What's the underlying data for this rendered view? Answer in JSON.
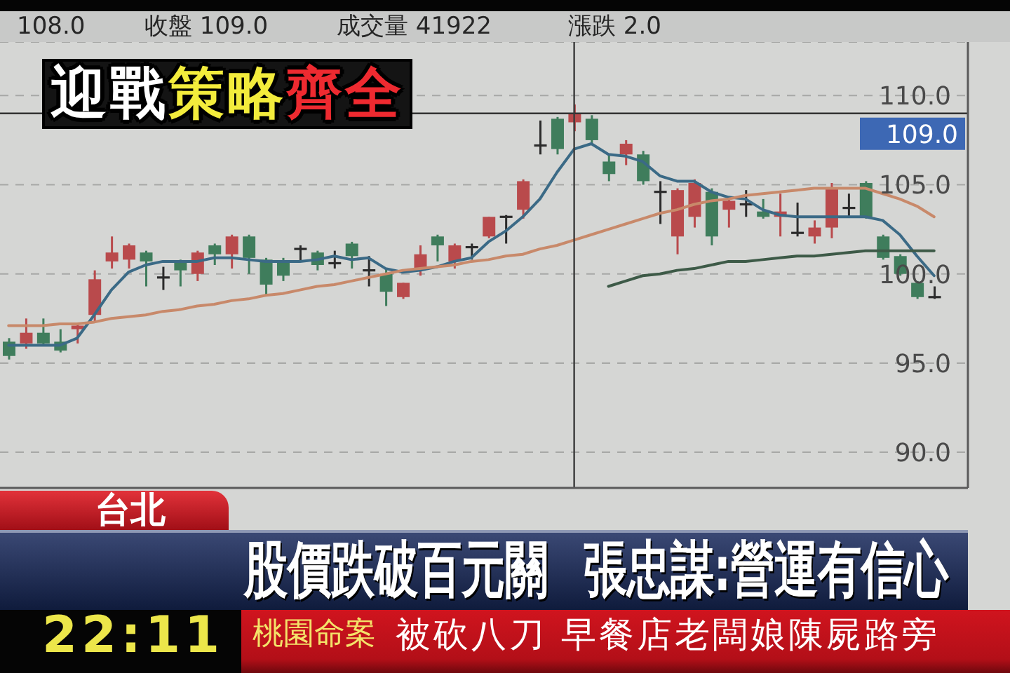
{
  "chart_data": {
    "type": "candlestick",
    "title": "迎戰策略齊全",
    "subtitle": "股價跌破百元關 張忠謀:營運有信心",
    "annotations": [
      "108.0",
      "收盤 109.0",
      "成交量 41922",
      "漲跌 2.0",
      "台北",
      "22:11",
      "桃園命案",
      "被砍八刀",
      "早餐店老闆娘陳屍路旁"
    ],
    "categories": [
      null,
      null,
      null,
      null,
      null,
      null,
      null,
      null,
      null,
      null,
      null,
      null,
      null,
      null,
      null,
      null,
      null,
      null,
      null,
      null,
      null,
      null,
      null,
      null,
      null,
      null,
      null,
      null,
      null,
      null,
      null,
      null,
      null,
      null,
      null,
      null,
      null,
      null,
      null,
      null,
      null,
      null,
      null,
      null,
      null,
      null,
      null,
      null,
      null,
      null,
      null,
      null,
      null,
      null,
      null
    ],
    "ohlc": [
      [
        96.2,
        96.4,
        95.2,
        95.4
      ],
      [
        96.1,
        97.5,
        95.8,
        96.7
      ],
      [
        96.7,
        97.5,
        96.0,
        96.1
      ],
      [
        96.2,
        96.9,
        95.6,
        95.7
      ],
      [
        96.9,
        97.2,
        96.1,
        97.1
      ],
      [
        97.7,
        100.2,
        97.3,
        99.7
      ],
      [
        100.7,
        102.1,
        100.3,
        101.2
      ],
      [
        100.8,
        101.7,
        100.3,
        101.6
      ],
      [
        101.2,
        101.3,
        99.3,
        100.7
      ],
      [
        99.8,
        100.4,
        99.1,
        99.8
      ],
      [
        100.7,
        100.8,
        99.3,
        100.2
      ],
      [
        100.0,
        101.3,
        99.6,
        101.2
      ],
      [
        101.6,
        101.7,
        100.5,
        101.1
      ],
      [
        101.1,
        102.2,
        100.3,
        102.1
      ],
      [
        102.1,
        102.2,
        100.0,
        100.9
      ],
      [
        100.8,
        100.9,
        98.8,
        99.4
      ],
      [
        100.7,
        100.9,
        99.6,
        99.9
      ],
      [
        101.4,
        101.6,
        100.7,
        101.4
      ],
      [
        101.2,
        101.3,
        100.2,
        100.5
      ],
      [
        100.6,
        101.3,
        100.3,
        100.6
      ],
      [
        101.7,
        101.8,
        100.3,
        101.0
      ],
      [
        100.2,
        101.0,
        99.3,
        100.2
      ],
      [
        100.0,
        100.3,
        98.2,
        99.0
      ],
      [
        98.7,
        99.5,
        98.6,
        99.5
      ],
      [
        100.3,
        101.6,
        99.9,
        101.1
      ],
      [
        102.1,
        102.2,
        100.7,
        101.6
      ],
      [
        100.7,
        101.7,
        100.3,
        101.6
      ],
      [
        101.5,
        101.7,
        100.8,
        101.5
      ],
      [
        102.1,
        103.2,
        102.0,
        103.2
      ],
      [
        103.2,
        103.3,
        101.7,
        103.2
      ],
      [
        103.6,
        105.3,
        103.1,
        105.2
      ],
      [
        107.2,
        108.6,
        106.7,
        107.2
      ],
      [
        108.7,
        108.8,
        106.7,
        107.0
      ],
      [
        108.5,
        109.5,
        108.0,
        109.0
      ],
      [
        108.7,
        108.9,
        107.3,
        107.5
      ],
      [
        106.3,
        106.7,
        105.2,
        105.6
      ],
      [
        106.7,
        107.5,
        106.1,
        107.3
      ],
      [
        106.7,
        106.9,
        105.0,
        105.2
      ],
      [
        104.6,
        105.2,
        102.8,
        104.6
      ],
      [
        102.1,
        104.8,
        101.1,
        104.7
      ],
      [
        103.2,
        105.3,
        102.6,
        105.1
      ],
      [
        104.6,
        104.8,
        101.6,
        102.1
      ],
      [
        103.6,
        104.2,
        102.6,
        104.1
      ],
      [
        103.9,
        104.7,
        103.2,
        103.9
      ],
      [
        103.5,
        104.2,
        103.1,
        103.2
      ],
      [
        103.2,
        104.5,
        102.1,
        103.5
      ],
      [
        102.3,
        104.0,
        102.1,
        102.3
      ],
      [
        102.1,
        103.0,
        101.7,
        102.6
      ],
      [
        102.6,
        105.1,
        102.0,
        104.8
      ],
      [
        103.7,
        104.5,
        103.2,
        103.7
      ],
      [
        105.1,
        105.2,
        103.1,
        103.2
      ],
      [
        102.1,
        102.2,
        100.8,
        100.9
      ],
      [
        101.0,
        101.1,
        99.9,
        100.0
      ],
      [
        99.5,
        99.6,
        98.6,
        98.7
      ],
      [
        98.7,
        99.3,
        98.6,
        98.7
      ]
    ],
    "colors": [
      "#3f7d5c",
      "#b94a4c",
      "#3f7d5c",
      "#3f7d5c",
      "#b94a4c",
      "#b94a4c",
      "#b94a4c",
      "#b94a4c",
      "#3f7d5c",
      "#2b2b2b",
      "#3f7d5c",
      "#b94a4c",
      "#3f7d5c",
      "#b94a4c",
      "#3f7d5c",
      "#3f7d5c",
      "#3f7d5c",
      "#2b2b2b",
      "#3f7d5c",
      "#2b2b2b",
      "#3f7d5c",
      "#2b2b2b",
      "#3f7d5c",
      "#b94a4c",
      "#b94a4c",
      "#3f7d5c",
      "#b94a4c",
      "#2b2b2b",
      "#b94a4c",
      "#2b2b2b",
      "#b94a4c",
      "#2b2b2b",
      "#3f7d5c",
      "#b94a4c",
      "#3f7d5c",
      "#3f7d5c",
      "#b94a4c",
      "#3f7d5c",
      "#2b2b2b",
      "#b94a4c",
      "#b94a4c",
      "#3f7d5c",
      "#b94a4c",
      "#2b2b2b",
      "#3f7d5c",
      "#b94a4c",
      "#2b2b2b",
      "#b94a4c",
      "#b94a4c",
      "#2b2b2b",
      "#3f7d5c",
      "#3f7d5c",
      "#3f7d5c",
      "#3f7d5c",
      "#2b2b2b"
    ],
    "series": [
      {
        "type": "line",
        "color": "#3b6a86",
        "values": [
          96.0,
          96.0,
          96.0,
          96.0,
          96.4,
          97.7,
          99.1,
          100.1,
          100.5,
          100.7,
          100.7,
          100.7,
          100.9,
          100.9,
          100.8,
          100.7,
          100.7,
          100.7,
          100.8,
          101.0,
          100.8,
          100.9,
          100.3,
          100.1,
          100.2,
          100.4,
          100.7,
          100.9,
          101.8,
          102.4,
          103.2,
          104.2,
          105.7,
          107.0,
          107.3,
          106.7,
          106.6,
          106.3,
          105.5,
          105.2,
          105.2,
          104.6,
          104.3,
          104.2,
          103.6,
          103.3,
          103.2,
          103.2,
          103.2,
          103.2,
          103.2,
          103.0,
          102.2,
          101.0,
          99.9
        ]
      },
      {
        "type": "line",
        "color": "#c8896a",
        "values": [
          97.1,
          97.1,
          97.1,
          97.2,
          97.2,
          97.3,
          97.5,
          97.6,
          97.7,
          97.9,
          98.0,
          98.2,
          98.3,
          98.5,
          98.6,
          98.8,
          98.9,
          99.1,
          99.3,
          99.4,
          99.6,
          99.8,
          100.0,
          100.2,
          100.3,
          100.4,
          100.5,
          100.7,
          100.8,
          101.0,
          101.1,
          101.4,
          101.6,
          101.9,
          102.2,
          102.5,
          102.8,
          103.1,
          103.4,
          103.6,
          103.9,
          104.1,
          104.2,
          104.4,
          104.5,
          104.6,
          104.7,
          104.8,
          104.8,
          104.8,
          104.8,
          104.5,
          104.2,
          103.8,
          103.2
        ]
      },
      {
        "type": "line",
        "color": "#3d5a47",
        "values": [
          null,
          null,
          null,
          null,
          null,
          null,
          null,
          null,
          null,
          null,
          null,
          null,
          null,
          null,
          null,
          null,
          null,
          null,
          null,
          null,
          null,
          null,
          null,
          null,
          null,
          null,
          null,
          null,
          null,
          null,
          null,
          null,
          null,
          null,
          null,
          99.3,
          99.6,
          99.9,
          100.0,
          100.2,
          100.3,
          100.5,
          100.7,
          100.7,
          100.8,
          100.9,
          101.0,
          101.0,
          101.1,
          101.2,
          101.3,
          101.3,
          101.3,
          101.3,
          101.3
        ]
      }
    ],
    "ylim": [
      88,
      113
    ],
    "yticks": [
      {
        "value": 90,
        "label": "90.0"
      },
      {
        "value": 95,
        "label": "95.0"
      },
      {
        "value": 100,
        "label": "100.0"
      },
      {
        "value": 105,
        "label": "105.0"
      },
      {
        "value": 110,
        "label": "110.0"
      }
    ],
    "grid": "y",
    "tick_labels": "y",
    "ref_lines": [
      {
        "axis": "y",
        "value": 109,
        "label": "109.0",
        "color": "#333333"
      }
    ]
  }
}
